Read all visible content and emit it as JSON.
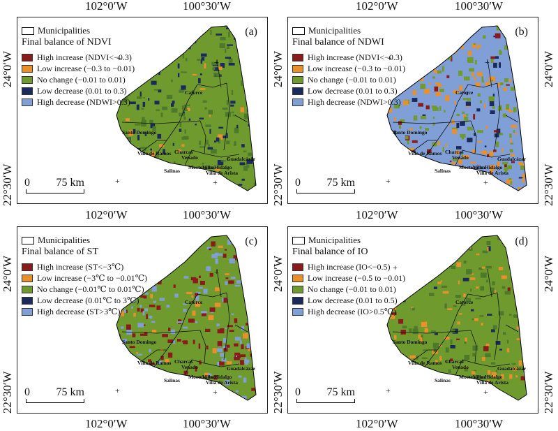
{
  "coords": {
    "lon_left": "102°0′W",
    "lon_right": "100°30′W",
    "lat_top": "24°0′W",
    "lat_bottom": "22°30′W"
  },
  "legend_common": {
    "municipalities": "Municipalities",
    "scale_zero": "0",
    "scale_dist": "75 km"
  },
  "colors": {
    "high_increase": "#8b1a1a",
    "low_increase": "#e8902a",
    "no_change": "#6f9a2e",
    "low_decrease": "#1b2a5c",
    "high_decrease": "#7f9fd6"
  },
  "panels": [
    {
      "label": "(a)",
      "title": "Final balance of NDVI",
      "classes": [
        "High increase (NDVI<−0.3)",
        "Low increase (−0.3 to −0.01)",
        "No change (−0.01 to 0.01)",
        "Low decrease (0.01 to 0.3)",
        "High decrease (NDWI>0.3)"
      ],
      "towns": [
        "Santo Domingo",
        "Charcas",
        "Catorce",
        "Venado",
        "Villa de Ramos",
        "Villa Hidalgo",
        "Guadalcázar",
        "Moctezuma",
        "Villa de Arista",
        "Salinas"
      ]
    },
    {
      "label": "(b)",
      "title": "Final balance of NDWI",
      "classes": [
        "High increase (NDVI<−0.3)",
        "Low increase (−0.3 to −0.01)",
        "No change (−0.01 to 0.01)",
        "Low decrease (0.01 to 0.3)",
        "High decrease (NDWI>0.3)"
      ],
      "towns": [
        "Santo Domingo",
        "Charcas",
        "Catorce",
        "Venado",
        "Villa de Ramos",
        "Villa Hidalgo",
        "Guadalcázar",
        "Moctezuma",
        "Villa de Arista",
        "Salinas"
      ]
    },
    {
      "label": "(c)",
      "title": "Final balance of ST",
      "classes": [
        "High increase (ST<−3℃)",
        "Low increase (−3℃ to −0.01℃)",
        "No change (−0.01℃ to 0.01℃)",
        "Low decrease (0.01℃ to 3℃)",
        "High decrease (ST>3℃)"
      ],
      "towns": [
        "Santo Domingo",
        "Charcas",
        "Catorce",
        "Venado",
        "Villa de Ramos",
        "Villa Hidalgo",
        "Guadalcázar",
        "Moctezuma",
        "Villa de Arista",
        "Salinas"
      ]
    },
    {
      "label": "(d)",
      "title": "Final balance of IO",
      "classes": [
        "High increase (IO<−0.5)",
        "Low increase (−0.5 to −0.01)",
        "No change (−0.01 to 0.01)",
        "Low decrease (0.01 to 0.5)",
        "High decrease (IO>0.5℃)"
      ],
      "towns": [
        "Santo Domingo",
        "Charcas",
        "Catorce",
        "Venado",
        "Villa de Ramos",
        "Villa Hidalgo",
        "Guadalcázar",
        "Moctezuma",
        "Villa de Arista",
        "Salinas"
      ]
    }
  ]
}
